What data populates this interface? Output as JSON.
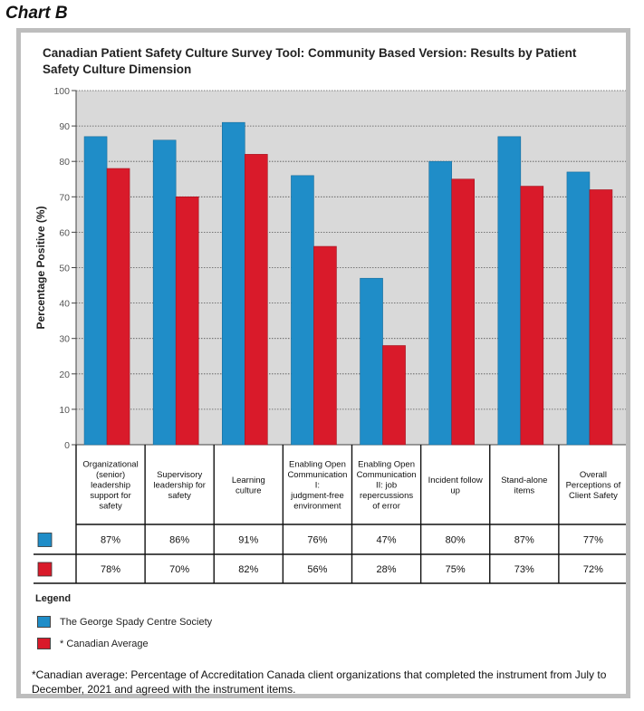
{
  "chart_label": "Chart B",
  "chart_data": {
    "type": "bar",
    "title": "Canadian Patient Safety Culture Survey Tool: Community Based Version: Results by Patient Safety Culture Dimension",
    "ylabel": "Percentage Positive (%)",
    "xlabel": "",
    "ylim": [
      0,
      100
    ],
    "yticks": [
      0,
      10,
      20,
      30,
      40,
      50,
      60,
      70,
      80,
      90,
      100
    ],
    "ytick_labels": [
      "0",
      "10",
      "20",
      "30",
      "40",
      "50",
      "60",
      "70",
      "80",
      "90",
      "100"
    ],
    "grid": true,
    "categories": [
      [
        "Organizational",
        "(senior)",
        "leadership",
        "support for",
        "safety"
      ],
      [
        "Supervisory",
        "leadership for",
        "safety"
      ],
      [
        "Learning",
        "culture"
      ],
      [
        "Enabling Open",
        "Communication",
        "I:",
        "judgment-free",
        "environment"
      ],
      [
        "Enabling Open",
        "Communication",
        "II: job",
        "repercussions",
        "of error"
      ],
      [
        "Incident follow",
        "up"
      ],
      [
        "Stand-alone",
        "items"
      ],
      [
        "Overall",
        "Perceptions of",
        "Client Safety"
      ]
    ],
    "series": [
      {
        "name": "The George Spady Centre Society",
        "color": "#1f8dc8",
        "values": [
          87,
          86,
          91,
          76,
          47,
          80,
          87,
          77
        ],
        "labels": [
          "87%",
          "86%",
          "91%",
          "76%",
          "47%",
          "80%",
          "87%",
          "77%"
        ]
      },
      {
        "name": "* Canadian Average",
        "color": "#d91a2a",
        "values": [
          78,
          70,
          82,
          56,
          28,
          75,
          73,
          72
        ],
        "labels": [
          "78%",
          "70%",
          "82%",
          "56%",
          "28%",
          "75%",
          "73%",
          "72%"
        ]
      }
    ]
  },
  "legend": {
    "title": "Legend",
    "items": [
      "The George Spady Centre Society",
      "* Canadian Average"
    ]
  },
  "colors": {
    "plot_bg": "#d9d9d9",
    "blue": "#1f8dc8",
    "red": "#d91a2a"
  },
  "footnote": "*Canadian average: Percentage of Accreditation Canada client organizations that completed the instrument from July to December, 2021 and agreed with the instrument items."
}
